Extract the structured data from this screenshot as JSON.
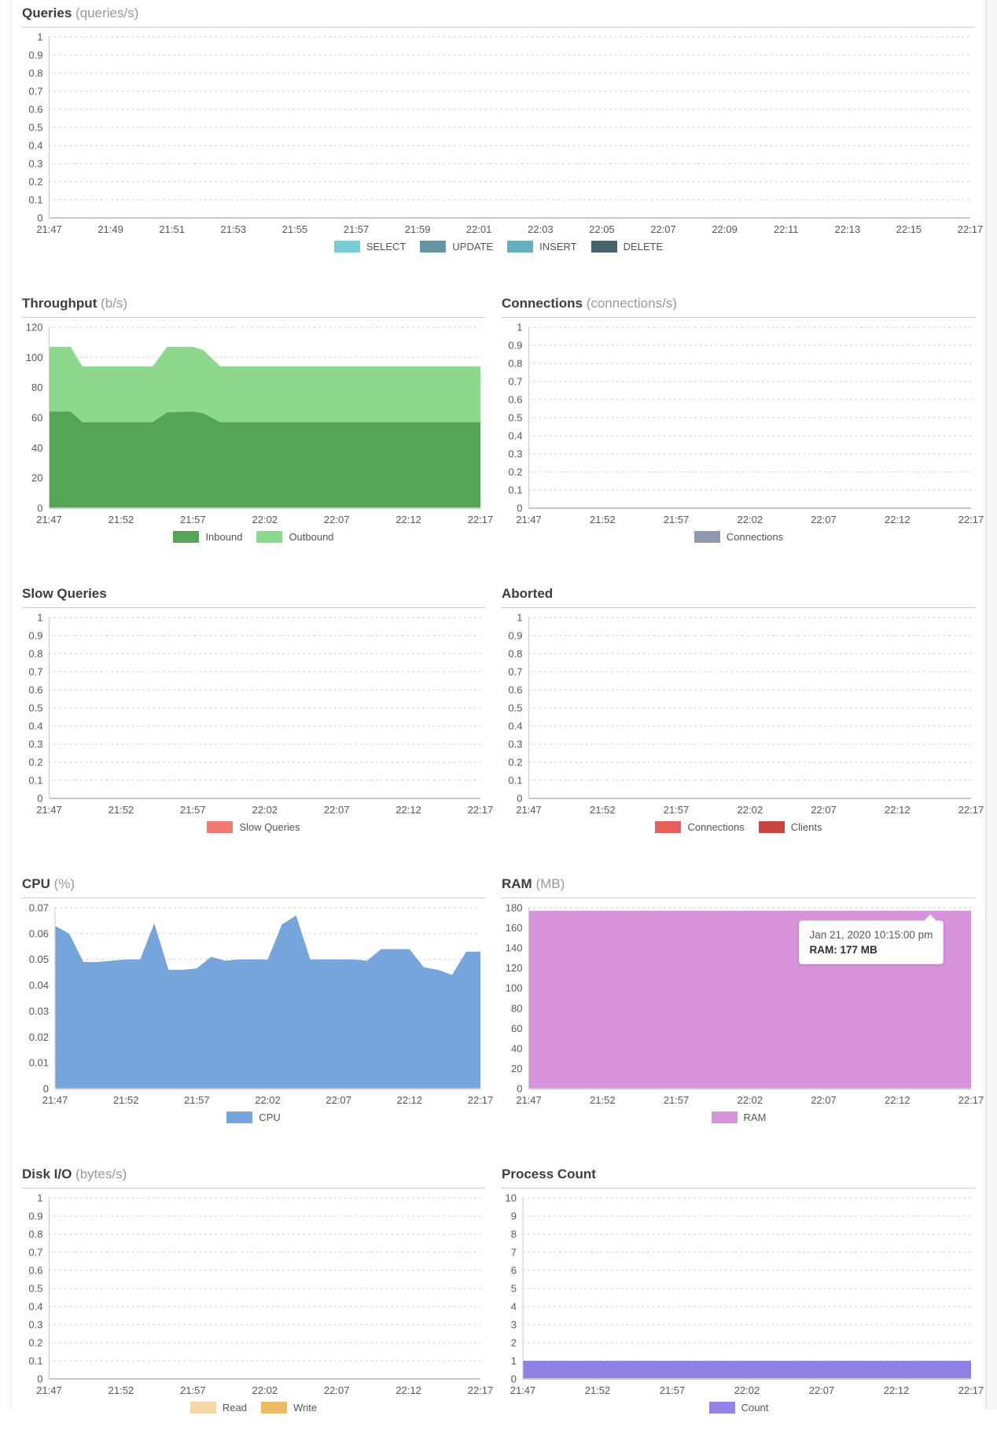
{
  "chart_data": [
    {
      "key": "queries",
      "type": "area",
      "title": "Queries",
      "unit": "(queries/s)",
      "layout": "full",
      "ylim": [
        0,
        1
      ],
      "y_ticks": [
        "1",
        "0.9",
        "0.8",
        "0.7",
        "0.6",
        "0.5",
        "0.4",
        "0.3",
        "0.2",
        "0.1",
        "0"
      ],
      "x_ticks": [
        "21:47",
        "21:49",
        "21:51",
        "21:53",
        "21:55",
        "21:57",
        "21:59",
        "22:01",
        "22:03",
        "22:05",
        "22:07",
        "22:09",
        "22:11",
        "22:13",
        "22:15",
        "22:17"
      ],
      "grid": "dotted",
      "series": [],
      "legend": [
        {
          "label": "SELECT",
          "color": "#79ccd5"
        },
        {
          "label": "UPDATE",
          "color": "#6594a2"
        },
        {
          "label": "INSERT",
          "color": "#63afbb"
        },
        {
          "label": "DELETE",
          "color": "#47626b"
        }
      ]
    },
    {
      "key": "throughput",
      "type": "area",
      "title": "Throughput",
      "unit": "(b/s)",
      "layout": "left",
      "ylim": [
        0,
        120
      ],
      "y_ticks": [
        "120",
        "100",
        "80",
        "60",
        "40",
        "20",
        "0"
      ],
      "x_ticks": [
        "21:47",
        "21:52",
        "21:57",
        "22:02",
        "22:07",
        "22:12",
        "22:17"
      ],
      "grid": "dotted",
      "stacked": true,
      "series": [
        {
          "name": "Inbound",
          "color": "#56a556",
          "points": [
            [
              0,
              64
            ],
            [
              1.5,
              64
            ],
            [
              2.3,
              57
            ],
            [
              7.2,
              57
            ],
            [
              8.2,
              63.5
            ],
            [
              10,
              64
            ],
            [
              10.7,
              63
            ],
            [
              11.9,
              57
            ],
            [
              30,
              57
            ]
          ]
        },
        {
          "name": "Outbound",
          "color": "#8ed88e",
          "points": [
            [
              0,
              43
            ],
            [
              1.5,
              43
            ],
            [
              2.3,
              37
            ],
            [
              7.2,
              37
            ],
            [
              8.2,
              43.5
            ],
            [
              10,
              43
            ],
            [
              10.7,
              42
            ],
            [
              11.9,
              37
            ],
            [
              30,
              37
            ]
          ]
        }
      ],
      "legend": [
        {
          "label": "Inbound",
          "color": "#56a556"
        },
        {
          "label": "Outbound",
          "color": "#8ed88e"
        }
      ]
    },
    {
      "key": "connections",
      "type": "area",
      "title": "Connections",
      "unit": "(connections/s)",
      "layout": "right",
      "ylim": [
        0,
        1
      ],
      "y_ticks": [
        "1",
        "0.9",
        "0.8",
        "0.7",
        "0.6",
        "0.5",
        "0.4",
        "0.3",
        "0.2",
        "0.1",
        "0"
      ],
      "x_ticks": [
        "21:47",
        "21:52",
        "21:57",
        "22:02",
        "22:07",
        "22:12",
        "22:17"
      ],
      "grid": "dotted",
      "series": [],
      "legend": [
        {
          "label": "Connections",
          "color": "#8d99ae"
        }
      ]
    },
    {
      "key": "slow_queries",
      "type": "area",
      "title": "Slow Queries",
      "unit": "",
      "layout": "left",
      "ylim": [
        0,
        1
      ],
      "y_ticks": [
        "1",
        "0.9",
        "0.8",
        "0.7",
        "0.6",
        "0.5",
        "0.4",
        "0.3",
        "0.2",
        "0.1",
        "0"
      ],
      "x_ticks": [
        "21:47",
        "21:52",
        "21:57",
        "22:02",
        "22:07",
        "22:12",
        "22:17"
      ],
      "grid": "dotted",
      "series": [],
      "legend": [
        {
          "label": "Slow Queries",
          "color": "#ef7a76"
        }
      ]
    },
    {
      "key": "aborted",
      "type": "area",
      "title": "Aborted",
      "unit": "",
      "layout": "right",
      "ylim": [
        0,
        1
      ],
      "y_ticks": [
        "1",
        "0.9",
        "0.8",
        "0.7",
        "0.6",
        "0.5",
        "0.4",
        "0.3",
        "0.2",
        "0.1",
        "0"
      ],
      "x_ticks": [
        "21:47",
        "21:52",
        "21:57",
        "22:02",
        "22:07",
        "22:12",
        "22:17"
      ],
      "grid": "dotted",
      "series": [],
      "legend": [
        {
          "label": "Connections",
          "color": "#e65f58"
        },
        {
          "label": "Clients",
          "color": "#c74740"
        }
      ]
    },
    {
      "key": "cpu",
      "type": "area",
      "title": "CPU",
      "unit": "(%)",
      "layout": "left",
      "ylim": [
        0,
        0.07
      ],
      "y_ticks": [
        "0.07",
        "0.06",
        "0.05",
        "0.04",
        "0.03",
        "0.02",
        "0.01",
        "0"
      ],
      "x_ticks": [
        "21:47",
        "21:52",
        "21:57",
        "22:02",
        "22:07",
        "22:12",
        "22:17"
      ],
      "grid": "dotted",
      "series": [
        {
          "name": "CPU",
          "color": "#76a5db",
          "points": [
            [
              0,
              0.063
            ],
            [
              1,
              0.06
            ],
            [
              2,
              0.049
            ],
            [
              3,
              0.049
            ],
            [
              4,
              0.0495
            ],
            [
              5,
              0.05
            ],
            [
              6,
              0.05
            ],
            [
              7,
              0.064
            ],
            [
              8,
              0.046
            ],
            [
              9,
              0.046
            ],
            [
              10,
              0.0465
            ],
            [
              11,
              0.051
            ],
            [
              12,
              0.0495
            ],
            [
              13,
              0.05
            ],
            [
              14,
              0.05
            ],
            [
              15,
              0.05
            ],
            [
              16,
              0.0635
            ],
            [
              17,
              0.067
            ],
            [
              18,
              0.05
            ],
            [
              19,
              0.05
            ],
            [
              20,
              0.05
            ],
            [
              21,
              0.05
            ],
            [
              22,
              0.0495
            ],
            [
              23,
              0.054
            ],
            [
              24,
              0.054
            ],
            [
              25,
              0.054
            ],
            [
              26,
              0.047
            ],
            [
              27,
              0.046
            ],
            [
              28,
              0.044
            ],
            [
              29,
              0.053
            ],
            [
              30,
              0.053
            ]
          ]
        }
      ],
      "legend": [
        {
          "label": "CPU",
          "color": "#76a5db"
        }
      ]
    },
    {
      "key": "ram",
      "type": "area",
      "title": "RAM",
      "unit": "(MB)",
      "layout": "right",
      "ylim": [
        0,
        180
      ],
      "y_ticks": [
        "180",
        "160",
        "140",
        "120",
        "100",
        "80",
        "60",
        "40",
        "20",
        "0"
      ],
      "x_ticks": [
        "21:47",
        "21:52",
        "21:57",
        "22:02",
        "22:07",
        "22:12",
        "22:17"
      ],
      "grid": "dotted",
      "series": [
        {
          "name": "RAM",
          "color": "#d794db",
          "points": [
            [
              0,
              177
            ],
            [
              30,
              177
            ]
          ]
        }
      ],
      "legend": [
        {
          "label": "RAM",
          "color": "#d794db"
        }
      ],
      "tooltip": {
        "line1": "Jan 21, 2020 10:15:00 pm",
        "line2": "RAM: 177 MB",
        "x_minute": 28,
        "y_value": 177
      }
    },
    {
      "key": "disk_io",
      "type": "area",
      "title": "Disk I/O",
      "unit": "(bytes/s)",
      "layout": "left",
      "ylim": [
        0,
        1
      ],
      "y_ticks": [
        "1",
        "0.9",
        "0.8",
        "0.7",
        "0.6",
        "0.5",
        "0.4",
        "0.3",
        "0.2",
        "0.1",
        "0"
      ],
      "x_ticks": [
        "21:47",
        "21:52",
        "21:57",
        "22:02",
        "22:07",
        "22:12",
        "22:17"
      ],
      "grid": "dotted",
      "series": [],
      "legend": [
        {
          "label": "Read",
          "color": "#f3d8a6"
        },
        {
          "label": "Write",
          "color": "#eaba67"
        }
      ]
    },
    {
      "key": "process_count",
      "type": "area",
      "title": "Process Count",
      "unit": "",
      "layout": "right",
      "ylim": [
        0,
        10
      ],
      "y_ticks": [
        "10",
        "9",
        "8",
        "7",
        "6",
        "5",
        "4",
        "3",
        "2",
        "1",
        "0"
      ],
      "x_ticks": [
        "21:47",
        "21:52",
        "21:57",
        "22:02",
        "22:07",
        "22:12",
        "22:17"
      ],
      "grid": "dotted",
      "series": [
        {
          "name": "Count",
          "color": "#8d82e4",
          "points": [
            [
              0,
              1
            ],
            [
              30,
              1
            ]
          ]
        }
      ],
      "legend": [
        {
          "label": "Count",
          "color": "#8f84e6"
        }
      ]
    }
  ]
}
